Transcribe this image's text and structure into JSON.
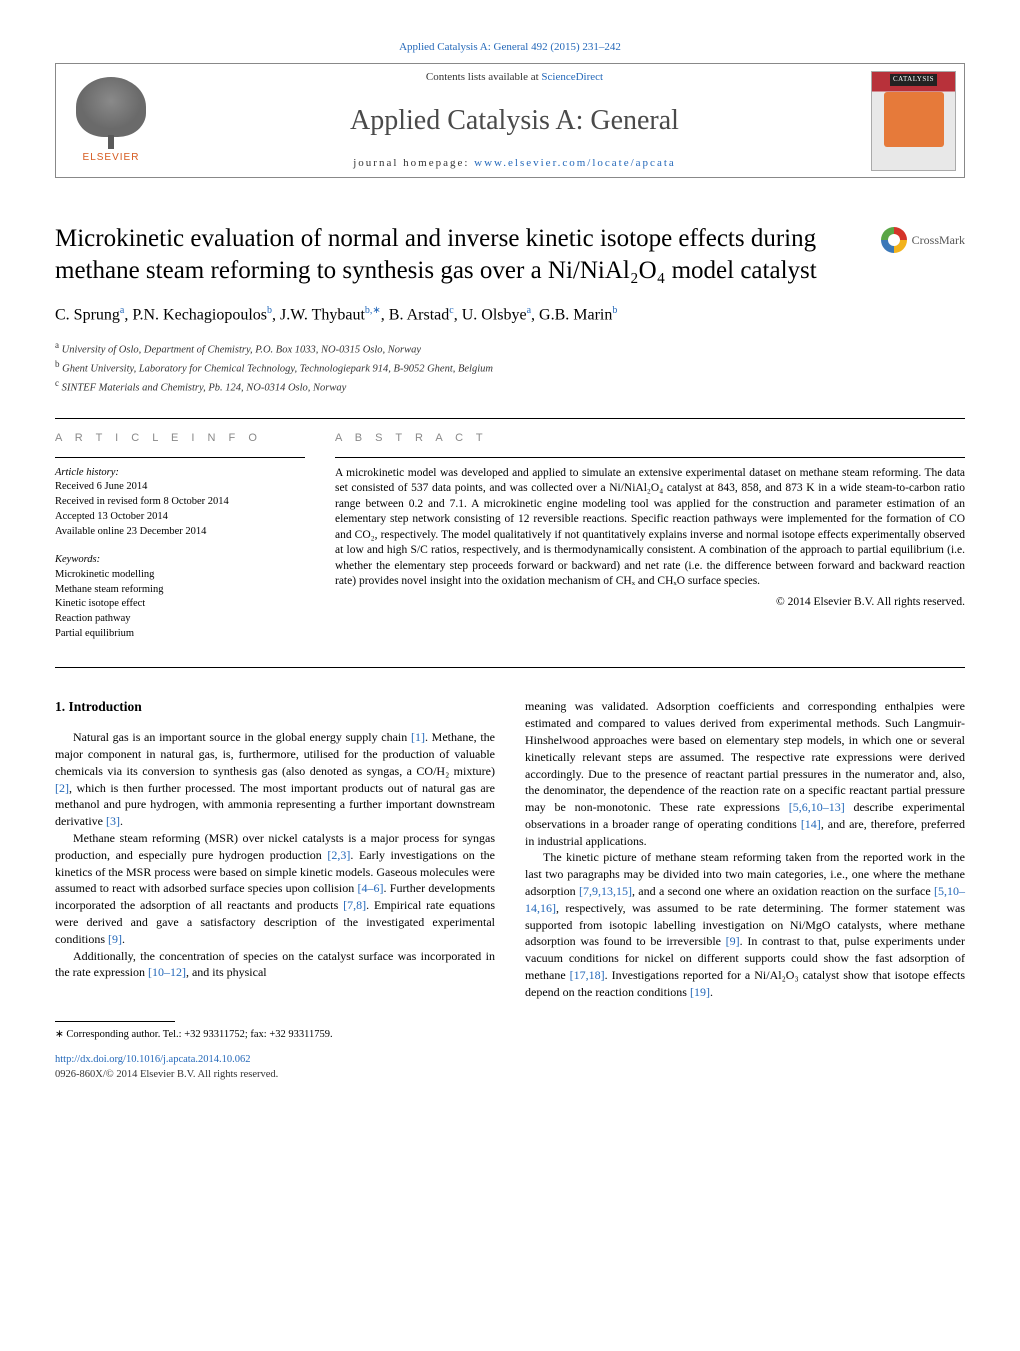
{
  "topLink": "Applied Catalysis A: General 492 (2015) 231–242",
  "banner": {
    "contentsPrefix": "Contents lists available at ",
    "contentsLink": "ScienceDirect",
    "journalName": "Applied Catalysis A: General",
    "homepagePrefix": "journal homepage: ",
    "homepageUrl": "www.elsevier.com/locate/apcata",
    "elsevierLabel": "ELSEVIER",
    "coverLabel": "CATALYSIS"
  },
  "title": "Microkinetic evaluation of normal and inverse kinetic isotope effects during methane steam reforming to synthesis gas over a Ni/NiAl₂O₄ model catalyst",
  "crossmark": "CrossMark",
  "authorsHtml": "C. Sprung<sup>a</sup>, P.N. Kechagiopoulos<sup>b</sup>, J.W. Thybaut<sup>b,∗</sup>, B. Arstad<sup>c</sup>, U. Olsbye<sup>a</sup>, G.B. Marin<sup>b</sup>",
  "affiliations": [
    {
      "sup": "a",
      "text": "University of Oslo, Department of Chemistry, P.O. Box 1033, NO-0315 Oslo, Norway"
    },
    {
      "sup": "b",
      "text": "Ghent University, Laboratory for Chemical Technology, Technologiepark 914, B-9052 Ghent, Belgium"
    },
    {
      "sup": "c",
      "text": "SINTEF Materials and Chemistry, Pb. 124, NO-0314 Oslo, Norway"
    }
  ],
  "sectionHeads": {
    "articleInfo": "A R T I C L E   I N F O",
    "abstract": "A B S T R A C T"
  },
  "articleHistory": {
    "label": "Article history:",
    "lines": [
      "Received 6 June 2014",
      "Received in revised form 8 October 2014",
      "Accepted 13 October 2014",
      "Available online 23 December 2014"
    ]
  },
  "keywords": {
    "label": "Keywords:",
    "items": [
      "Microkinetic modelling",
      "Methane steam reforming",
      "Kinetic isotope effect",
      "Reaction pathway",
      "Partial equilibrium"
    ]
  },
  "abstractText": "A microkinetic model was developed and applied to simulate an extensive experimental dataset on methane steam reforming. The data set consisted of 537 data points, and was collected over a Ni/NiAl₂O₄ catalyst at 843, 858, and 873 K in a wide steam-to-carbon ratio range between 0.2 and 7.1. A microkinetic engine modeling tool was applied for the construction and parameter estimation of an elementary step network consisting of 12 reversible reactions. Specific reaction pathways were implemented for the formation of CO and CO₂, respectively. The model qualitatively if not quantitatively explains inverse and normal isotope effects experimentally observed at low and high S/C ratios, respectively, and is thermodynamically consistent. A combination of the approach to partial equilibrium (i.e. whether the elementary step proceeds forward or backward) and net rate (i.e. the difference between forward and backward reaction rate) provides novel insight into the oxidation mechanism of CHₓ and CHₓO surface species.",
  "copyrightAbstract": "© 2014 Elsevier B.V. All rights reserved.",
  "introHeading": "1.  Introduction",
  "leftParas": [
    "Natural gas is an important source in the global energy supply chain <span class=\"ref\">[1]</span>. Methane, the major component in natural gas, is, furthermore, utilised for the production of valuable chemicals via its conversion to synthesis gas (also denoted as syngas, a CO/H₂ mixture) <span class=\"ref\">[2]</span>, which is then further processed. The most important products out of natural gas are methanol and pure hydrogen, with ammonia representing a further important downstream derivative <span class=\"ref\">[3]</span>.",
    "Methane steam reforming (MSR) over nickel catalysts is a major process for syngas production, and especially pure hydrogen production <span class=\"ref\">[2,3]</span>. Early investigations on the kinetics of the MSR process were based on simple kinetic models. Gaseous molecules were assumed to react with adsorbed surface species upon collision <span class=\"ref\">[4–6]</span>. Further developments incorporated the adsorption of all reactants and products <span class=\"ref\">[7,8]</span>. Empirical rate equations were derived and gave a satisfactory description of the investigated experimental conditions <span class=\"ref\">[9]</span>.",
    "Additionally, the concentration of species on the catalyst surface was incorporated in the rate expression <span class=\"ref\">[10–12]</span>, and its physical"
  ],
  "rightParas": [
    "meaning was validated. Adsorption coefficients and corresponding enthalpies were estimated and compared to values derived from experimental methods. Such Langmuir-Hinshelwood approaches were based on elementary step models, in which one or several kinetically relevant steps are assumed. The respective rate expressions were derived accordingly. Due to the presence of reactant partial pressures in the numerator and, also, the denominator, the dependence of the reaction rate on a specific reactant partial pressure may be non-monotonic. These rate expressions <span class=\"ref\">[5,6,10–13]</span> describe experimental observations in a broader range of operating conditions <span class=\"ref\">[14]</span>, and are, therefore, preferred in industrial applications.",
    "The kinetic picture of methane steam reforming taken from the reported work in the last two paragraphs may be divided into two main categories, i.e., one where the methane adsorption <span class=\"ref\">[7,9,13,15]</span>, and a second one where an oxidation reaction on the surface <span class=\"ref\">[5,10–14,16]</span>, respectively, was assumed to be rate determining. The former statement was supported from isotopic labelling investigation on Ni/MgO catalysts, where methane adsorption was found to be irreversible <span class=\"ref\">[9]</span>. In contrast to that, pulse experiments under vacuum conditions for nickel on different supports could show the fast adsorption of methane <span class=\"ref\">[17,18]</span>. Investigations reported for a Ni/Al₂O₃ catalyst show that isotope effects depend on the reaction conditions <span class=\"ref\">[19]</span>."
  ],
  "footnote": "∗ Corresponding author. Tel.: +32 93311752; fax: +32 93311759.",
  "doi": "http://dx.doi.org/10.1016/j.apcata.2014.10.062",
  "copyrightFooter": "0926-860X/© 2014 Elsevier B.V. All rights reserved.",
  "colors": {
    "link": "#2468b9",
    "elsevierOrange": "#d65a1f",
    "coverRed": "#b8313a",
    "sectionHeadGrey": "#888888",
    "text": "#000000"
  },
  "typography": {
    "titleFontSize": 25,
    "journalNameFontSize": 28,
    "authorsFontSize": 16,
    "bodyFontSize": 12,
    "abstractFontSize": 11.5,
    "metaFontSize": 10.5
  }
}
